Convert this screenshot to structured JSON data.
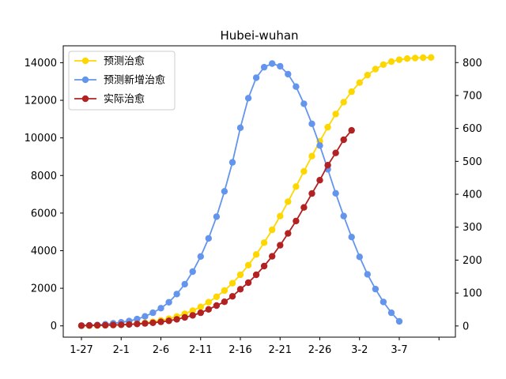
{
  "chart_data": {
    "type": "line",
    "title": "Hubei-wuhan",
    "xlabel": "",
    "ylabel": "",
    "categories": [
      "1-27",
      "1-28",
      "1-29",
      "1-30",
      "1-31",
      "2-1",
      "2-2",
      "2-3",
      "2-4",
      "2-5",
      "2-6",
      "2-7",
      "2-8",
      "2-9",
      "2-10",
      "2-11",
      "2-12",
      "2-13",
      "2-14",
      "2-15",
      "2-16",
      "2-17",
      "2-18",
      "2-19",
      "2-20",
      "2-21",
      "2-22",
      "2-23",
      "2-24",
      "2-25",
      "2-26",
      "2-27",
      "2-28",
      "2-29",
      "3-1",
      "3-2",
      "3-3",
      "3-4",
      "3-5",
      "3-6",
      "3-7",
      "3-8",
      "3-9",
      "3-10",
      "3-11"
    ],
    "x_tick_labels": [
      "1-27",
      "2-1",
      "2-6",
      "2-11",
      "2-16",
      "2-21",
      "2-26",
      "3-2",
      "3-7",
      ""
    ],
    "y_left_ticks": [
      "0",
      "2000",
      "4000",
      "6000",
      "8000",
      "10000",
      "12000",
      "14000"
    ],
    "y_right_ticks": [
      "0",
      "100",
      "200",
      "300",
      "400",
      "500",
      "600",
      "700",
      "800"
    ],
    "ylim_left": [
      -600,
      14900
    ],
    "ylim_right": [
      -34,
      851
    ],
    "legend_position": "upper-left",
    "series": [
      {
        "name": "预测治愈",
        "axis": "left",
        "color": "#ffd700",
        "values": [
          5,
          10,
          18,
          28,
          42,
          60,
          85,
          120,
          160,
          215,
          290,
          380,
          500,
          640,
          810,
          1010,
          1260,
          1550,
          1880,
          2270,
          2720,
          3230,
          3800,
          4430,
          5110,
          5840,
          6610,
          7410,
          8220,
          9030,
          9820,
          10570,
          11270,
          11900,
          12460,
          12940,
          13340,
          13660,
          13900,
          14060,
          14160,
          14220,
          14250,
          14270,
          14280
        ]
      },
      {
        "name": "预测新增治愈",
        "axis": "right",
        "color": "#6495ed",
        "values": [
          1,
          2,
          3,
          5,
          8,
          11,
          15,
          21,
          29,
          40,
          54,
          72,
          97,
          127,
          165,
          211,
          266,
          332,
          409,
          497,
          602,
          692,
          754,
          786,
          797,
          789,
          765,
          727,
          675,
          614,
          548,
          476,
          403,
          334,
          270,
          210,
          157,
          112,
          73,
          40,
          14,
          null,
          null,
          null,
          null
        ]
      },
      {
        "name": "实际治愈",
        "axis": "left",
        "color": "#b22222",
        "values": [
          15,
          20,
          28,
          36,
          46,
          60,
          78,
          100,
          130,
          165,
          215,
          270,
          350,
          450,
          560,
          700,
          880,
          1080,
          1280,
          1570,
          1950,
          2300,
          2720,
          3180,
          3700,
          4290,
          4920,
          5580,
          6300,
          7040,
          7750,
          8550,
          9200,
          9900,
          10400,
          null,
          null,
          null,
          null,
          null,
          null,
          null,
          null,
          null,
          null
        ]
      }
    ]
  }
}
